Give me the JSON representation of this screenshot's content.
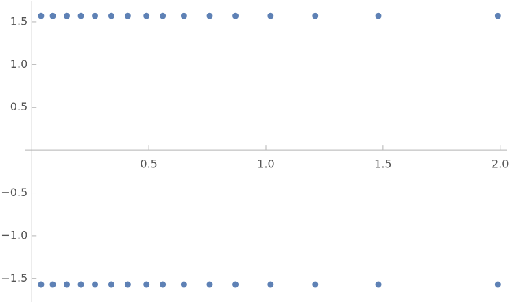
{
  "chart_data": {
    "type": "scatter",
    "x": [
      0.04,
      0.09,
      0.15,
      0.21,
      0.27,
      0.34,
      0.41,
      0.49,
      0.56,
      0.65,
      0.76,
      0.87,
      1.02,
      1.21,
      1.48,
      1.99
    ],
    "series": [
      {
        "color": "#5e81b5",
        "values": [
          1.57,
          1.57,
          1.57,
          1.57,
          1.57,
          1.57,
          1.57,
          1.57,
          1.57,
          1.57,
          1.57,
          1.57,
          1.57,
          1.57,
          1.57,
          1.57
        ]
      },
      {
        "color": "#5e81b5",
        "values": [
          -1.57,
          -1.57,
          -1.57,
          -1.57,
          -1.57,
          -1.57,
          -1.57,
          -1.57,
          -1.57,
          -1.57,
          -1.57,
          -1.57,
          -1.57,
          -1.57,
          -1.57,
          -1.57
        ]
      }
    ],
    "xlim": [
      -0.03,
      2.03
    ],
    "ylim": [
      -1.77,
      1.74
    ],
    "xticks": [
      0.5,
      {
        "value": 1,
        "label": "1.0"
      },
      1.5,
      {
        "value": 2,
        "label": "2.0"
      }
    ],
    "yticks": [
      1.5,
      {
        "value": 1,
        "label": "1.0"
      },
      0.5,
      {
        "value": -0.5,
        "label": "−0.5"
      },
      {
        "value": -1,
        "label": "−1.0"
      },
      {
        "value": -1.5,
        "label": "−1.5"
      }
    ]
  }
}
